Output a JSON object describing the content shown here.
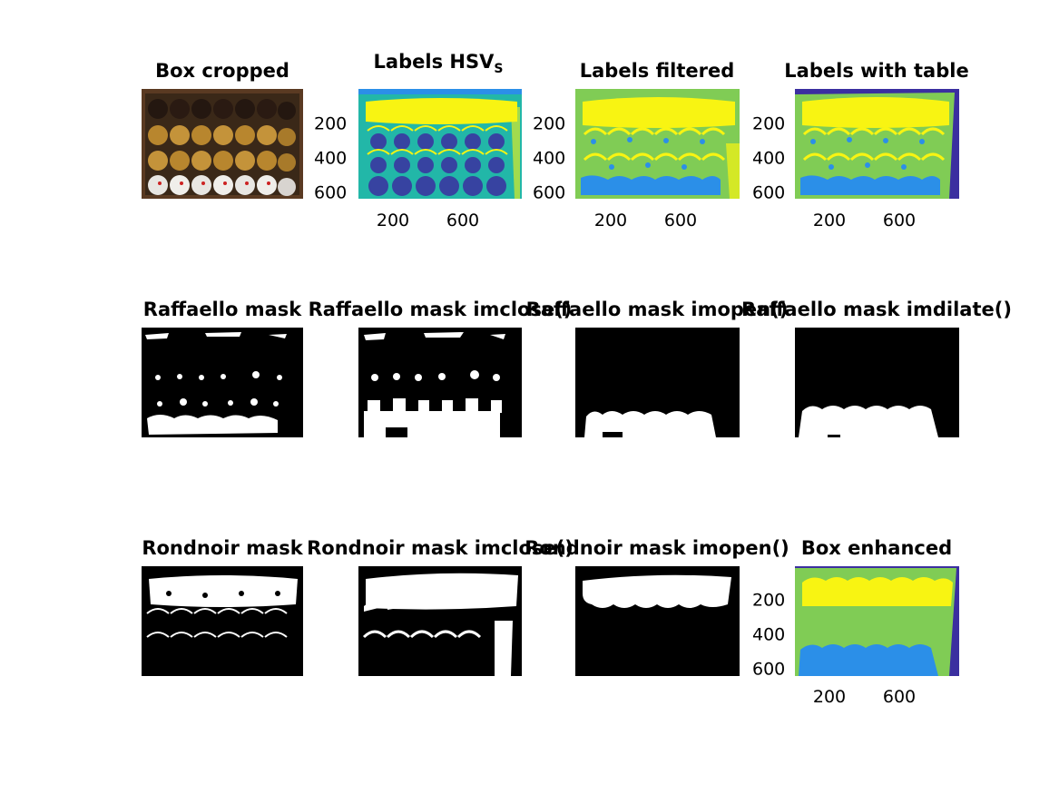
{
  "figure": {
    "row1": [
      {
        "title": "Box cropped"
      },
      {
        "title": "Labels HSV",
        "subscript": "S"
      },
      {
        "title": "Labels filtered"
      },
      {
        "title": "Labels with table"
      }
    ],
    "row2": [
      {
        "title": "Raffaello mask"
      },
      {
        "title": "Raffaello mask imclose()"
      },
      {
        "title": "Raffaello mask imopen()"
      },
      {
        "title": "Raffaello mask imdilate()"
      }
    ],
    "row3": [
      {
        "title": "Rondnoir mask"
      },
      {
        "title": "Rondnoir mask imclose()"
      },
      {
        "title": "Rondnoir mask imopen()"
      },
      {
        "title": "Box enhanced"
      }
    ],
    "yticks": [
      "200",
      "400",
      "600"
    ],
    "xticks": [
      "200",
      "600"
    ]
  },
  "colors": {
    "parula_dark": "#3b2fa0",
    "parula_blue": "#2b8fe8",
    "parula_teal": "#22b7a8",
    "parula_green": "#80cc55",
    "parula_yellow": "#f8f412",
    "mask_white": "#ffffff",
    "mask_black": "#000000"
  }
}
